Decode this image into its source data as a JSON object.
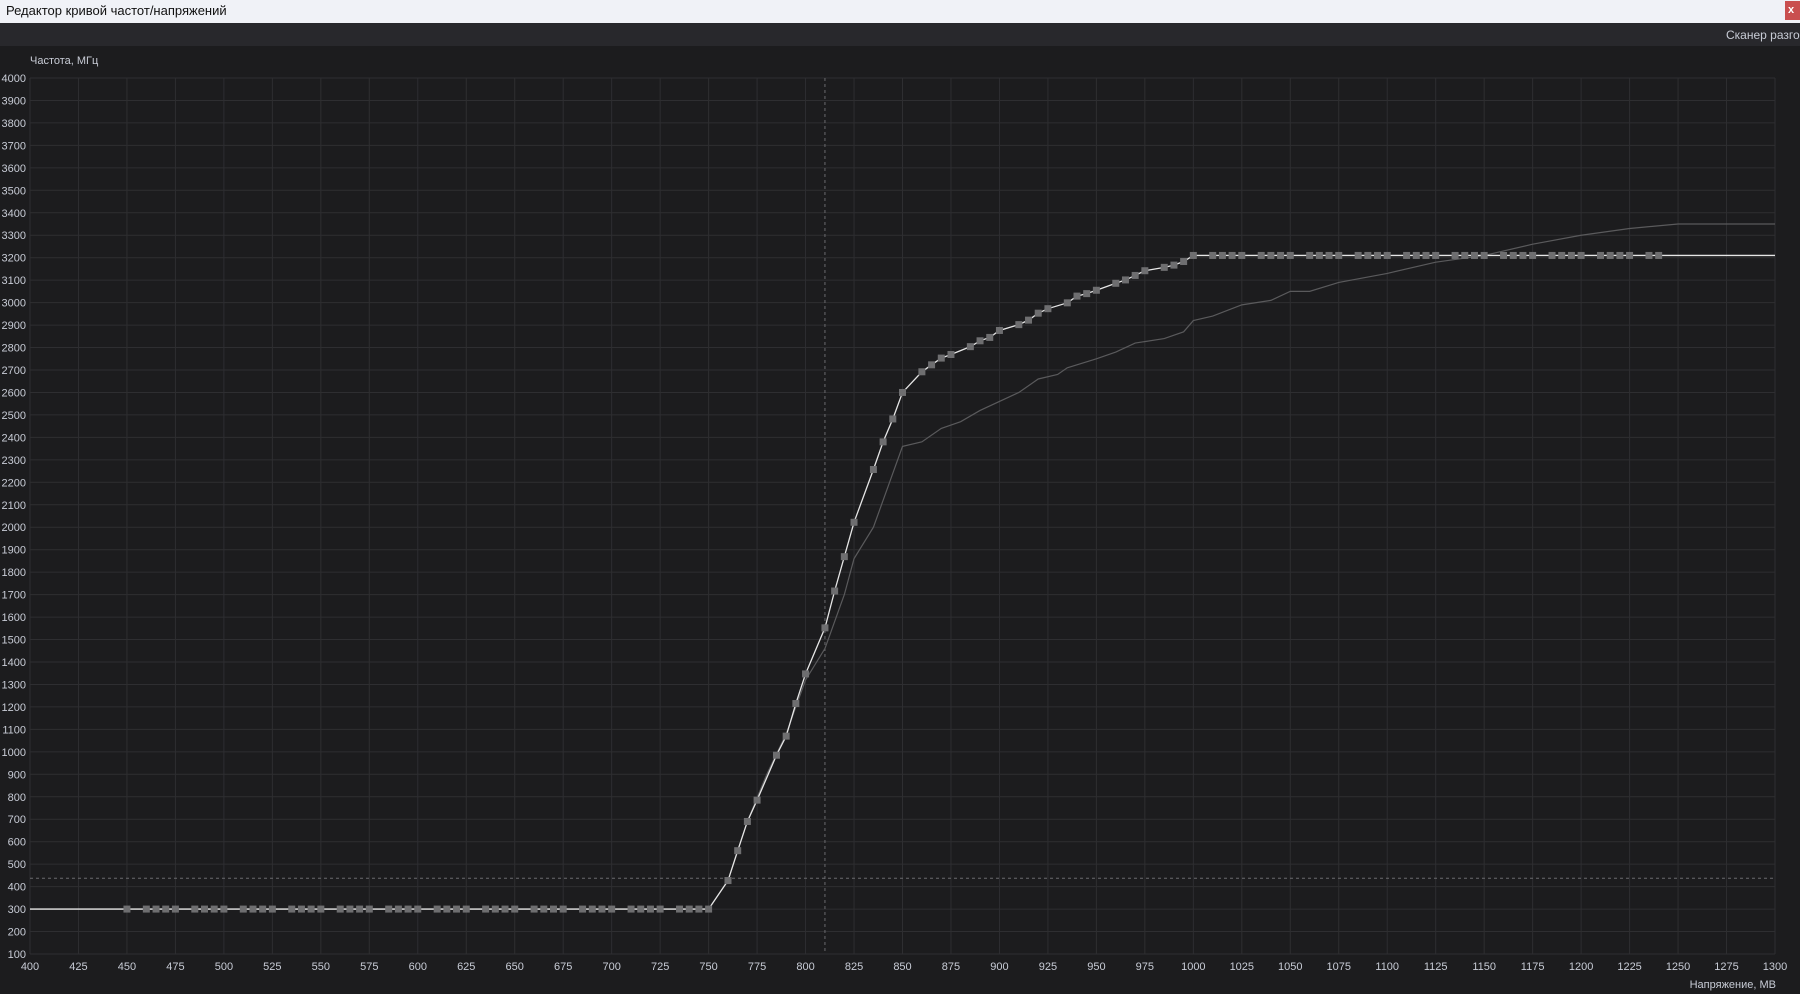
{
  "window": {
    "title": "Редактор кривой частот/напряжений",
    "close_label": "x"
  },
  "toolbar": {
    "scanner_label": "Сканер разгона"
  },
  "colors": {
    "background": "#1c1c1e",
    "grid": "#2e2e31",
    "curve": "#e6e6e6",
    "marker": "#6e6e70",
    "reference_curve": "#5a5a5c",
    "close_button": "#c94f4f"
  },
  "chart_data": {
    "type": "line",
    "xlabel": "Напряжение, МВ",
    "ylabel": "Частота, МГц",
    "xlim": [
      400,
      1300
    ],
    "ylim": [
      100,
      4000
    ],
    "xticks": [
      400,
      425,
      450,
      475,
      500,
      525,
      550,
      575,
      600,
      625,
      650,
      675,
      700,
      725,
      750,
      775,
      800,
      825,
      850,
      875,
      900,
      925,
      950,
      975,
      1000,
      1025,
      1050,
      1075,
      1100,
      1125,
      1150,
      1175,
      1200,
      1225,
      1250,
      1275,
      1300
    ],
    "yticks": [
      100,
      200,
      300,
      400,
      500,
      600,
      700,
      800,
      900,
      1000,
      1100,
      1200,
      1300,
      1400,
      1500,
      1600,
      1700,
      1800,
      1900,
      2000,
      2100,
      2200,
      2300,
      2400,
      2500,
      2600,
      2700,
      2800,
      2900,
      3000,
      3100,
      3200,
      3300,
      3400,
      3500,
      3600,
      3700,
      3800,
      3900,
      4000
    ],
    "grid": true,
    "crosshair": {
      "x": 810,
      "y": 437
    },
    "series": [
      {
        "role": "edited-curve",
        "line_start": [
          400,
          300
        ],
        "line_end": [
          1300,
          3210
        ],
        "points": [
          [
            450,
            300
          ],
          [
            460,
            300
          ],
          [
            465,
            300
          ],
          [
            470,
            300
          ],
          [
            475,
            300
          ],
          [
            485,
            300
          ],
          [
            490,
            300
          ],
          [
            495,
            300
          ],
          [
            500,
            300
          ],
          [
            510,
            300
          ],
          [
            515,
            300
          ],
          [
            520,
            300
          ],
          [
            525,
            300
          ],
          [
            535,
            300
          ],
          [
            540,
            300
          ],
          [
            545,
            300
          ],
          [
            550,
            300
          ],
          [
            560,
            300
          ],
          [
            565,
            300
          ],
          [
            570,
            300
          ],
          [
            575,
            300
          ],
          [
            585,
            300
          ],
          [
            590,
            300
          ],
          [
            595,
            300
          ],
          [
            600,
            300
          ],
          [
            610,
            300
          ],
          [
            615,
            300
          ],
          [
            620,
            300
          ],
          [
            625,
            300
          ],
          [
            635,
            300
          ],
          [
            640,
            300
          ],
          [
            645,
            300
          ],
          [
            650,
            300
          ],
          [
            660,
            300
          ],
          [
            665,
            300
          ],
          [
            670,
            300
          ],
          [
            675,
            300
          ],
          [
            685,
            300
          ],
          [
            690,
            300
          ],
          [
            695,
            300
          ],
          [
            700,
            300
          ],
          [
            710,
            300
          ],
          [
            715,
            300
          ],
          [
            720,
            300
          ],
          [
            725,
            300
          ],
          [
            735,
            300
          ],
          [
            740,
            300
          ],
          [
            745,
            300
          ],
          [
            750,
            300
          ],
          [
            760,
            427
          ],
          [
            765,
            560
          ],
          [
            770,
            690
          ],
          [
            775,
            785
          ],
          [
            785,
            985
          ],
          [
            790,
            1070
          ],
          [
            795,
            1215
          ],
          [
            800,
            1347
          ],
          [
            810,
            1552
          ],
          [
            815,
            1716
          ],
          [
            820,
            1869
          ],
          [
            825,
            2022
          ],
          [
            835,
            2257
          ],
          [
            840,
            2380
          ],
          [
            845,
            2482
          ],
          [
            850,
            2600
          ],
          [
            860,
            2692
          ],
          [
            865,
            2723
          ],
          [
            870,
            2753
          ],
          [
            875,
            2769
          ],
          [
            885,
            2804
          ],
          [
            890,
            2830
          ],
          [
            895,
            2845
          ],
          [
            900,
            2876
          ],
          [
            910,
            2902
          ],
          [
            915,
            2922
          ],
          [
            920,
            2953
          ],
          [
            925,
            2973
          ],
          [
            935,
            2999
          ],
          [
            940,
            3029
          ],
          [
            945,
            3040
          ],
          [
            950,
            3055
          ],
          [
            960,
            3086
          ],
          [
            965,
            3101
          ],
          [
            970,
            3121
          ],
          [
            975,
            3142
          ],
          [
            985,
            3157
          ],
          [
            990,
            3167
          ],
          [
            995,
            3183
          ],
          [
            1000,
            3210
          ],
          [
            1010,
            3210
          ],
          [
            1015,
            3210
          ],
          [
            1020,
            3210
          ],
          [
            1025,
            3210
          ],
          [
            1035,
            3210
          ],
          [
            1040,
            3210
          ],
          [
            1045,
            3210
          ],
          [
            1050,
            3210
          ],
          [
            1060,
            3210
          ],
          [
            1065,
            3210
          ],
          [
            1070,
            3210
          ],
          [
            1075,
            3210
          ],
          [
            1085,
            3210
          ],
          [
            1090,
            3210
          ],
          [
            1095,
            3210
          ],
          [
            1100,
            3210
          ],
          [
            1110,
            3210
          ],
          [
            1115,
            3210
          ],
          [
            1120,
            3210
          ],
          [
            1125,
            3210
          ],
          [
            1135,
            3210
          ],
          [
            1140,
            3210
          ],
          [
            1145,
            3210
          ],
          [
            1150,
            3210
          ],
          [
            1160,
            3210
          ],
          [
            1165,
            3210
          ],
          [
            1170,
            3210
          ],
          [
            1175,
            3210
          ],
          [
            1185,
            3210
          ],
          [
            1190,
            3210
          ],
          [
            1195,
            3210
          ],
          [
            1200,
            3210
          ],
          [
            1210,
            3210
          ],
          [
            1215,
            3210
          ],
          [
            1220,
            3210
          ],
          [
            1225,
            3210
          ],
          [
            1235,
            3210
          ],
          [
            1240,
            3210
          ]
        ]
      },
      {
        "role": "reference-curve",
        "points": [
          [
            400,
            300
          ],
          [
            750,
            300
          ],
          [
            760,
            427
          ],
          [
            770,
            690
          ],
          [
            780,
            900
          ],
          [
            790,
            1080
          ],
          [
            800,
            1320
          ],
          [
            810,
            1460
          ],
          [
            820,
            1700
          ],
          [
            825,
            1860
          ],
          [
            835,
            2000
          ],
          [
            850,
            2360
          ],
          [
            860,
            2380
          ],
          [
            870,
            2440
          ],
          [
            880,
            2470
          ],
          [
            890,
            2520
          ],
          [
            900,
            2560
          ],
          [
            910,
            2600
          ],
          [
            920,
            2660
          ],
          [
            930,
            2680
          ],
          [
            935,
            2710
          ],
          [
            950,
            2750
          ],
          [
            960,
            2780
          ],
          [
            970,
            2820
          ],
          [
            985,
            2840
          ],
          [
            995,
            2870
          ],
          [
            1000,
            2920
          ],
          [
            1010,
            2940
          ],
          [
            1025,
            2990
          ],
          [
            1040,
            3010
          ],
          [
            1050,
            3050
          ],
          [
            1060,
            3050
          ],
          [
            1075,
            3090
          ],
          [
            1100,
            3130
          ],
          [
            1125,
            3180
          ],
          [
            1150,
            3210
          ],
          [
            1175,
            3260
          ],
          [
            1200,
            3300
          ],
          [
            1225,
            3330
          ],
          [
            1250,
            3350
          ],
          [
            1300,
            3350
          ]
        ]
      }
    ]
  }
}
